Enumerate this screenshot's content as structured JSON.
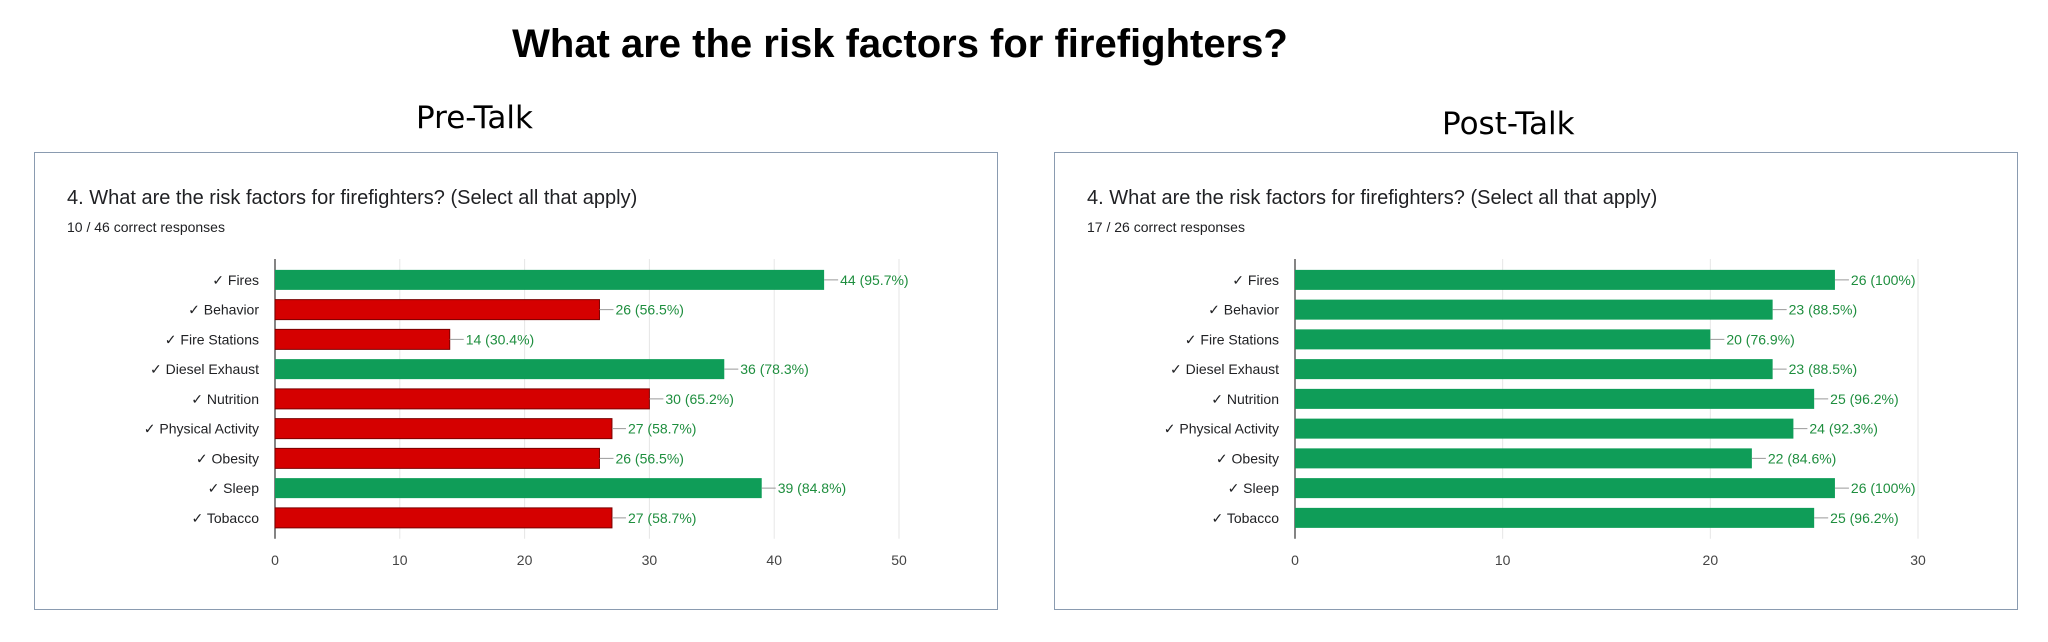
{
  "page": {
    "title": "What are the risk factors for firefighters?"
  },
  "panels": [
    {
      "heading": "Pre-Talk",
      "question": "4. What are the risk factors for firefighters? (Select all that apply)",
      "responses": "10 / 46 correct responses"
    },
    {
      "heading": "Post-Talk",
      "question": "4. What are the risk factors for firefighters? (Select all that apply)",
      "responses": "17 / 26 correct responses"
    }
  ],
  "colors": {
    "green": "#0f9d58",
    "red": "#d50000",
    "grid": "#e6e6e6",
    "label_text": "#1e8e3e",
    "axis_text": "#444444"
  },
  "chart_data": [
    {
      "type": "bar",
      "orientation": "horizontal",
      "categories": [
        "✓ Fires",
        "✓ Behavior",
        "✓ Fire Stations",
        "✓ Diesel Exhaust",
        "✓ Nutrition",
        "✓ Physical Activity",
        "✓ Obesity",
        "✓ Sleep",
        "✓ Tobacco"
      ],
      "values": [
        44,
        26,
        14,
        36,
        30,
        27,
        26,
        39,
        27
      ],
      "labels": [
        "44 (95.7%)",
        "26 (56.5%)",
        "14 (30.4%)",
        "36 (78.3%)",
        "30 (65.2%)",
        "27 (58.7%)",
        "26 (56.5%)",
        "39 (84.8%)",
        "27 (58.7%)"
      ],
      "bar_colors": [
        "green",
        "red",
        "red",
        "green",
        "red",
        "red",
        "red",
        "green",
        "red"
      ],
      "xlim": [
        0,
        50
      ],
      "xticks": [
        0,
        10,
        20,
        30,
        40,
        50
      ],
      "grid": true
    },
    {
      "type": "bar",
      "orientation": "horizontal",
      "categories": [
        "✓ Fires",
        "✓ Behavior",
        "✓ Fire Stations",
        "✓ Diesel Exhaust",
        "✓ Nutrition",
        "✓ Physical Activity",
        "✓ Obesity",
        "✓ Sleep",
        "✓ Tobacco"
      ],
      "values": [
        26,
        23,
        20,
        23,
        25,
        24,
        22,
        26,
        25
      ],
      "labels": [
        "26 (100%)",
        "23 (88.5%)",
        "20 (76.9%)",
        "23 (88.5%)",
        "25 (96.2%)",
        "24 (92.3%)",
        "22 (84.6%)",
        "26 (100%)",
        "25 (96.2%)"
      ],
      "bar_colors": [
        "green",
        "green",
        "green",
        "green",
        "green",
        "green",
        "green",
        "green",
        "green"
      ],
      "xlim": [
        0,
        30
      ],
      "xticks": [
        0,
        10,
        20,
        30
      ],
      "grid": true
    }
  ]
}
